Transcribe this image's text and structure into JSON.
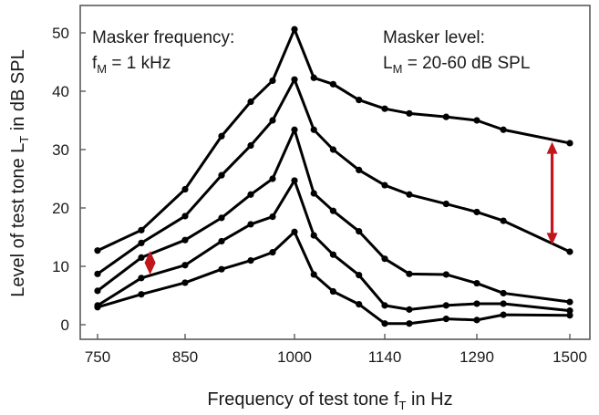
{
  "chart_data": {
    "type": "line",
    "x": [
      750,
      800,
      850,
      900,
      940,
      970,
      1000,
      1030,
      1060,
      1100,
      1140,
      1180,
      1240,
      1290,
      1350,
      1500
    ],
    "xticks": [
      750,
      850,
      1000,
      1140,
      1290,
      1500
    ],
    "xtick_labels": [
      "750",
      "850",
      "1000",
      "1140",
      "1290",
      "1500"
    ],
    "yticks": [
      0,
      10,
      20,
      30,
      40,
      50
    ],
    "ytick_labels": [
      "0",
      "10",
      "20",
      "30",
      "40",
      "50"
    ],
    "ylim": [
      -3,
      55
    ],
    "xlabel": {
      "main": "Frequency of test tone  f",
      "sub": "T",
      "tail": " in Hz"
    },
    "ylabel": {
      "main": "Level of test tone  L",
      "sub": "T",
      "tail": " in dB SPL"
    },
    "series": [
      {
        "values": [
          12.7,
          16.2,
          23.2,
          32.3,
          38.2,
          41.8,
          50.6,
          42.3,
          41.2,
          38.5,
          37.0,
          36.2,
          35.6,
          35.0,
          33.4,
          31.1
        ]
      },
      {
        "values": [
          8.7,
          14.0,
          18.6,
          25.6,
          30.7,
          35.0,
          42.0,
          33.4,
          30.0,
          26.5,
          23.9,
          22.3,
          20.7,
          19.3,
          17.8,
          12.5
        ]
      },
      {
        "values": [
          5.8,
          11.5,
          14.5,
          18.3,
          22.3,
          25.0,
          33.4,
          22.5,
          19.5,
          16.0,
          11.3,
          8.7,
          8.6,
          7.1,
          5.4,
          3.9
        ]
      },
      {
        "values": [
          3.3,
          8.0,
          10.2,
          14.3,
          17.2,
          18.5,
          24.7,
          15.3,
          12.0,
          8.5,
          3.3,
          2.6,
          3.3,
          3.6,
          3.6,
          2.4
        ]
      },
      {
        "values": [
          3.0,
          5.2,
          7.2,
          9.5,
          11.0,
          12.4,
          15.9,
          8.6,
          5.7,
          3.5,
          0.2,
          0.2,
          1.0,
          0.8,
          1.7,
          1.6
        ]
      }
    ],
    "annotations": [
      {
        "lines": [
          "Masker frequency:"
        ],
        "fm": {
          "main": "f",
          "sub": "M",
          "tail": " = 1 kHz"
        }
      },
      {
        "lines": [
          "Masker level:"
        ],
        "lm": {
          "main": "L",
          "sub": "M",
          "tail": " = 20-60 dB SPL"
        }
      }
    ],
    "markers": {
      "diamond": {
        "x": 810,
        "y": 10.6
      },
      "double_arrow": {
        "x": 1460,
        "y_from": 31.0,
        "y_to": 14.0
      }
    },
    "colors": {
      "line": "#000000",
      "accent": "#c0161c",
      "frame": "#5a5a5a"
    },
    "grid": false,
    "legend": "none"
  }
}
